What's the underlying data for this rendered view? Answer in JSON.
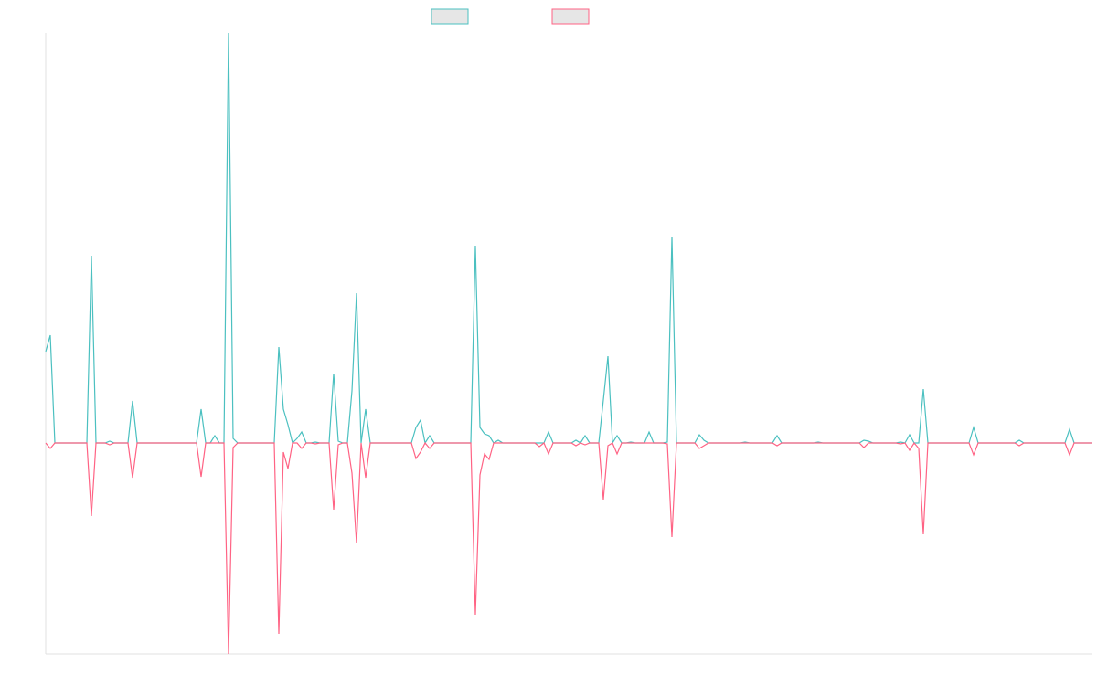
{
  "chart_data": {
    "type": "line",
    "ylim": [
      -231,
      449
    ],
    "series": [
      {
        "color": "#4bc0c0",
        "values": [
          100,
          118,
          0,
          0,
          0,
          0,
          0,
          0,
          0,
          0,
          205,
          0,
          0,
          0,
          2,
          0,
          0,
          0,
          0,
          46,
          0,
          0,
          0,
          0,
          0,
          0,
          0,
          0,
          0,
          0,
          0,
          0,
          0,
          0,
          37,
          0,
          0,
          8,
          0,
          0,
          449,
          5,
          0,
          0,
          0,
          0,
          0,
          0,
          0,
          0,
          0,
          105,
          37,
          20,
          0,
          5,
          12,
          0,
          0,
          1,
          0,
          0,
          0,
          76,
          2,
          0,
          0,
          57,
          164,
          0,
          37,
          0,
          0,
          0,
          0,
          0,
          0,
          0,
          0,
          0,
          0,
          17,
          25,
          0,
          8,
          0,
          0,
          0,
          0,
          0,
          0,
          0,
          0,
          0,
          216,
          17,
          10,
          8,
          0,
          3,
          0,
          0,
          0,
          0,
          0,
          0,
          0,
          0,
          0,
          0,
          12,
          0,
          0,
          0,
          0,
          0,
          3,
          0,
          8,
          0,
          0,
          0,
          47,
          95,
          0,
          8,
          0,
          0,
          1,
          0,
          0,
          0,
          12,
          0,
          0,
          0,
          1,
          226,
          0,
          0,
          0,
          0,
          0,
          9,
          3,
          0,
          0,
          0,
          0,
          0,
          0,
          0,
          0,
          1,
          0,
          0,
          0,
          0,
          0,
          0,
          8,
          0,
          0,
          0,
          0,
          0,
          0,
          0,
          0,
          1,
          0,
          0,
          0,
          0,
          0,
          0,
          0,
          0,
          0,
          3,
          2,
          0,
          0,
          0,
          0,
          0,
          0,
          1,
          0,
          9,
          0,
          0,
          59,
          0,
          0,
          0,
          0,
          0,
          0,
          0,
          0,
          0,
          0,
          17,
          0,
          0,
          0,
          0,
          0,
          0,
          0,
          0,
          0,
          3,
          0,
          0,
          0,
          0,
          0,
          0,
          0,
          0,
          0,
          0,
          15,
          0,
          0,
          0,
          0,
          0
        ]
      },
      {
        "color": "#ff6384",
        "values": [
          0,
          -6,
          0,
          0,
          0,
          0,
          0,
          0,
          0,
          0,
          -80,
          0,
          0,
          0,
          -2,
          0,
          0,
          0,
          0,
          -38,
          0,
          0,
          0,
          0,
          0,
          0,
          0,
          0,
          0,
          0,
          0,
          0,
          0,
          0,
          -37,
          0,
          0,
          0,
          0,
          0,
          -231,
          -5,
          0,
          0,
          0,
          0,
          0,
          0,
          0,
          0,
          0,
          -209,
          -10,
          -28,
          0,
          0,
          -6,
          0,
          0,
          -1,
          0,
          0,
          0,
          -73,
          -2,
          0,
          0,
          -33,
          -110,
          0,
          -38,
          0,
          0,
          0,
          0,
          0,
          0,
          0,
          0,
          0,
          0,
          -17,
          -10,
          0,
          -6,
          0,
          0,
          0,
          0,
          0,
          0,
          0,
          0,
          0,
          -188,
          -35,
          -12,
          -18,
          0,
          0,
          0,
          0,
          0,
          0,
          0,
          0,
          0,
          0,
          -4,
          0,
          -12,
          0,
          0,
          0,
          0,
          0,
          -3,
          0,
          -2,
          0,
          0,
          0,
          -62,
          -3,
          0,
          -12,
          0,
          0,
          0,
          0,
          0,
          0,
          0,
          0,
          0,
          0,
          -1,
          -103,
          0,
          0,
          0,
          0,
          0,
          -6,
          -3,
          0,
          0,
          0,
          0,
          0,
          0,
          0,
          0,
          0,
          0,
          0,
          0,
          0,
          0,
          0,
          -3,
          0,
          0,
          0,
          0,
          0,
          0,
          0,
          0,
          0,
          0,
          0,
          0,
          0,
          0,
          0,
          0,
          0,
          0,
          -5,
          0,
          0,
          0,
          0,
          0,
          0,
          0,
          -1,
          0,
          -8,
          0,
          -6,
          -100,
          0,
          0,
          0,
          0,
          0,
          0,
          0,
          0,
          0,
          0,
          -13,
          0,
          0,
          0,
          0,
          0,
          0,
          0,
          0,
          0,
          -3,
          0,
          0,
          0,
          0,
          0,
          0,
          0,
          0,
          0,
          0,
          -13,
          0,
          0,
          0,
          0,
          0
        ]
      }
    ]
  }
}
